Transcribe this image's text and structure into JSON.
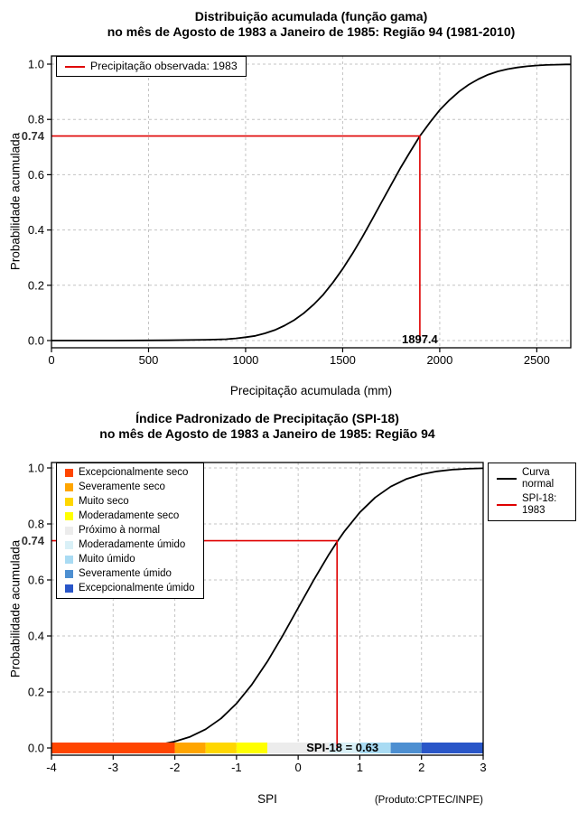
{
  "colors": {
    "curve": "#000000",
    "reference": "#DF0000",
    "grid": "#C3C3C3",
    "special_tick": "#333333"
  },
  "chart_data": [
    {
      "type": "line",
      "title": "Distribuição acumulada (função gama)",
      "subtitle": "no mês de Agosto de 1983 a Janeiro de 1985: Região 94 (1981-2010)",
      "xlabel": "Precipitação acumulada (mm)",
      "ylabel": "Probabilidade acumulada",
      "xlim": [
        0,
        2675
      ],
      "ylim": [
        0,
        1
      ],
      "grid": true,
      "xticks": [
        {
          "v": 0,
          "label": "0"
        },
        {
          "v": 500,
          "label": "500"
        },
        {
          "v": 1000,
          "label": "1000"
        },
        {
          "v": 1500,
          "label": "1500"
        },
        {
          "v": 2000,
          "label": "2000"
        },
        {
          "v": 2500,
          "label": "2500"
        }
      ],
      "yticks": [
        {
          "v": 0,
          "label": "0.0"
        },
        {
          "v": 0.2,
          "label": "0.2"
        },
        {
          "v": 0.4,
          "label": "0.4"
        },
        {
          "v": 0.6,
          "label": "0.6"
        },
        {
          "v": 0.8,
          "label": "0.8"
        },
        {
          "v": 1,
          "label": "1.0"
        }
      ],
      "special_ytick": {
        "v": 0.74,
        "label": "0.74"
      },
      "reference": {
        "x": 1897.4,
        "y": 0.74,
        "label": "1897.4"
      },
      "legend": [
        {
          "label": "Precipitação observada: 1983",
          "color": "#DF0000"
        }
      ],
      "series": [
        {
          "name": "Curva gama acumulada",
          "color": "#000000",
          "x": [
            0,
            300,
            600,
            800,
            900,
            950,
            1000,
            1050,
            1100,
            1150,
            1200,
            1250,
            1300,
            1350,
            1400,
            1450,
            1500,
            1550,
            1600,
            1650,
            1700,
            1750,
            1800,
            1850,
            1897.4,
            1950,
            2000,
            2050,
            2100,
            2150,
            2200,
            2250,
            2300,
            2350,
            2400,
            2450,
            2500,
            2550,
            2600,
            2650,
            2675
          ],
          "y": [
            0,
            0,
            0.001,
            0.003,
            0.005,
            0.008,
            0.012,
            0.017,
            0.026,
            0.038,
            0.054,
            0.074,
            0.099,
            0.13,
            0.166,
            0.21,
            0.259,
            0.314,
            0.373,
            0.436,
            0.5,
            0.564,
            0.627,
            0.686,
            0.74,
            0.79,
            0.834,
            0.87,
            0.901,
            0.926,
            0.946,
            0.962,
            0.974,
            0.982,
            0.988,
            0.992,
            0.995,
            0.997,
            0.998,
            0.999,
            0.999
          ]
        }
      ]
    },
    {
      "type": "line",
      "title": "Índice Padronizado de Precipitação (SPI-18)",
      "subtitle": "no mês de Agosto de 1983 a Janeiro de 1985: Região 94",
      "xlabel": "SPI",
      "ylabel": "Probabilidade acumulada",
      "footnote": "(Produto:CPTEC/INPE)",
      "xlim": [
        -4,
        3
      ],
      "ylim": [
        0,
        1
      ],
      "grid": true,
      "xticks": [
        {
          "v": -4,
          "label": "-4"
        },
        {
          "v": -3,
          "label": "-3"
        },
        {
          "v": -2,
          "label": "-2"
        },
        {
          "v": -1,
          "label": "-1"
        },
        {
          "v": 0,
          "label": "0"
        },
        {
          "v": 1,
          "label": "1"
        },
        {
          "v": 2,
          "label": "2"
        },
        {
          "v": 3,
          "label": "3"
        }
      ],
      "yticks": [
        {
          "v": 0,
          "label": "0.0"
        },
        {
          "v": 0.2,
          "label": "0.2"
        },
        {
          "v": 0.4,
          "label": "0.4"
        },
        {
          "v": 0.6,
          "label": "0.6"
        },
        {
          "v": 0.8,
          "label": "0.8"
        },
        {
          "v": 1,
          "label": "1.0"
        }
      ],
      "special_ytick": {
        "v": 0.74,
        "label": "0.74"
      },
      "reference": {
        "x": 0.63,
        "y": 0.74,
        "label": "SPI-18 = 0.63"
      },
      "legend_categories": [
        {
          "label": "Excepcionalmente seco",
          "color": "#FF4500"
        },
        {
          "label": "Severamente seco",
          "color": "#FFA500"
        },
        {
          "label": "Muito seco",
          "color": "#FFD700"
        },
        {
          "label": "Moderadamente seco",
          "color": "#FFFF00"
        },
        {
          "label": "Próximo à normal",
          "color": "#ECECEC"
        },
        {
          "label": "Moderadamente úmido",
          "color": "#D9F0F7"
        },
        {
          "label": "Muito úmido",
          "color": "#A9DBF3"
        },
        {
          "label": "Severamente úmido",
          "color": "#4D8FD1"
        },
        {
          "label": "Excepcionalmente úmido",
          "color": "#2956C8"
        }
      ],
      "legend_lines": [
        {
          "label": "Curva normal",
          "color": "#000000"
        },
        {
          "label": "SPI-18: 1983",
          "color": "#DF0000"
        }
      ],
      "spi_bar": [
        {
          "from": -4,
          "to": -2,
          "color": "#FF4500"
        },
        {
          "from": -2,
          "to": -1.5,
          "color": "#FFA500"
        },
        {
          "from": -1.5,
          "to": -1,
          "color": "#FFD700"
        },
        {
          "from": -1,
          "to": -0.5,
          "color": "#FFFF00"
        },
        {
          "from": -0.5,
          "to": 0.5,
          "color": "#ECECEC"
        },
        {
          "from": 0.5,
          "to": 1,
          "color": "#D9F0F7"
        },
        {
          "from": 1,
          "to": 1.5,
          "color": "#A9DBF3"
        },
        {
          "from": 1.5,
          "to": 2,
          "color": "#4D8FD1"
        },
        {
          "from": 2,
          "to": 3,
          "color": "#2956C8"
        }
      ],
      "series": [
        {
          "name": "Curva normal",
          "color": "#000000",
          "x": [
            -4,
            -3.75,
            -3.5,
            -3.25,
            -3,
            -2.75,
            -2.5,
            -2.25,
            -2,
            -1.75,
            -1.5,
            -1.25,
            -1,
            -0.75,
            -0.5,
            -0.25,
            0,
            0.25,
            0.5,
            0.63,
            0.75,
            1,
            1.25,
            1.5,
            1.75,
            2,
            2.25,
            2.5,
            2.75,
            3
          ],
          "y": [
            0,
            0.0001,
            0.0002,
            0.0006,
            0.0013,
            0.003,
            0.0062,
            0.0122,
            0.0228,
            0.0401,
            0.0668,
            0.1056,
            0.1587,
            0.2266,
            0.3085,
            0.4013,
            0.5,
            0.5987,
            0.6915,
            0.7357,
            0.7734,
            0.8413,
            0.8944,
            0.9332,
            0.9599,
            0.9772,
            0.9878,
            0.9938,
            0.997,
            0.9987
          ]
        }
      ]
    }
  ]
}
